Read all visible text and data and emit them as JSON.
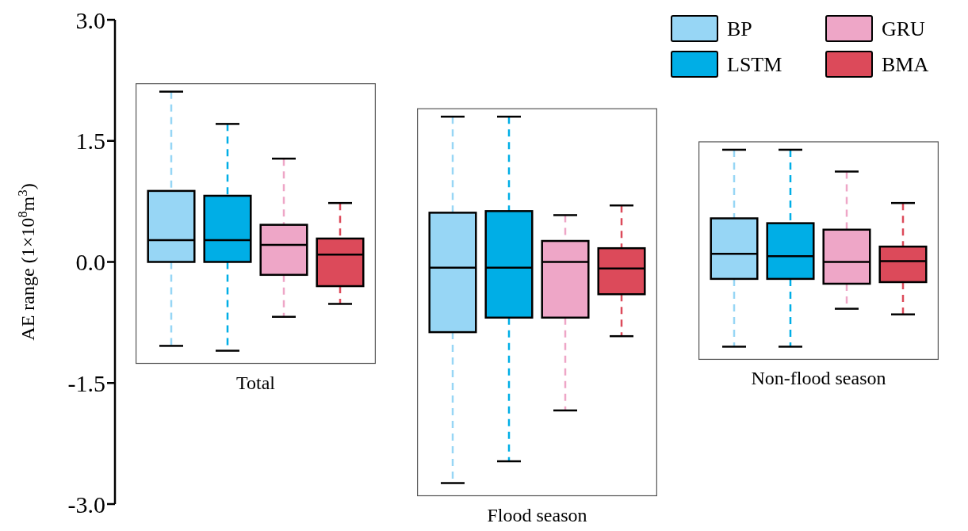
{
  "chart_data": {
    "type": "box",
    "ylabel": "AE range (1×10$^{8}$m$^{3}$)",
    "categories": [
      "Total",
      "Flood season",
      "Non-flood season"
    ],
    "ylim": [
      -3,
      3
    ],
    "yticks": [
      {
        "value": -3,
        "label": "-3.0"
      },
      {
        "value": -1.5,
        "label": "-1.5"
      },
      {
        "value": 0,
        "label": "0.0"
      },
      {
        "value": 1.5,
        "label": "1.5"
      },
      {
        "value": 3,
        "label": "3.0"
      }
    ],
    "legend": "top right",
    "series": [
      {
        "name": "BP",
        "color": "#97d6f5",
        "boxes": [
          {
            "low": -1.04,
            "q1": 0,
            "median": 0.27,
            "q3": 0.88,
            "high": 2.11
          },
          {
            "low": -2.74,
            "q1": -0.87,
            "median": -0.07,
            "q3": 0.61,
            "high": 1.8
          },
          {
            "low": -1.05,
            "q1": -0.21,
            "median": 0.1,
            "q3": 0.54,
            "high": 1.39
          }
        ]
      },
      {
        "name": "LSTM",
        "color": "#00aee6",
        "boxes": [
          {
            "low": -1.1,
            "q1": 0,
            "median": 0.27,
            "q3": 0.82,
            "high": 1.71
          },
          {
            "low": -2.47,
            "q1": -0.69,
            "median": -0.07,
            "q3": 0.63,
            "high": 1.8
          },
          {
            "low": -1.05,
            "q1": -0.21,
            "median": 0.07,
            "q3": 0.48,
            "high": 1.39
          }
        ]
      },
      {
        "name": "GRU",
        "color": "#eea6c7",
        "boxes": [
          {
            "low": -0.68,
            "q1": -0.16,
            "median": 0.21,
            "q3": 0.46,
            "high": 1.28
          },
          {
            "low": -1.84,
            "q1": -0.69,
            "median": 0,
            "q3": 0.26,
            "high": 0.58
          },
          {
            "low": -0.58,
            "q1": -0.27,
            "median": 0,
            "q3": 0.4,
            "high": 1.12
          }
        ]
      },
      {
        "name": "BMA",
        "color": "#dc4a5a",
        "boxes": [
          {
            "low": -0.52,
            "q1": -0.3,
            "median": 0.09,
            "q3": 0.29,
            "high": 0.73
          },
          {
            "low": -0.92,
            "q1": -0.4,
            "median": -0.08,
            "q3": 0.17,
            "high": 0.7
          },
          {
            "low": -0.65,
            "q1": -0.25,
            "median": 0.01,
            "q3": 0.19,
            "high": 0.73
          }
        ]
      }
    ]
  }
}
